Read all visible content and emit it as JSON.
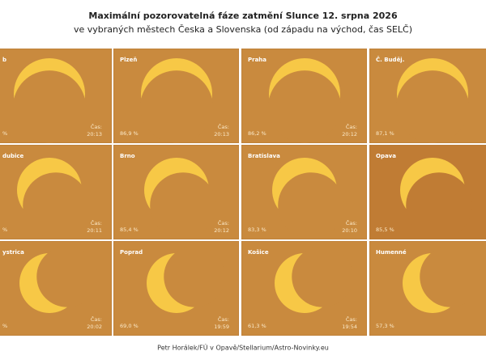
{
  "header": {
    "title": "Maximální pozorovatelná fáze zatmění Slunce 12. srpna 2026",
    "subtitle": "ve vybraných městech Česka a Slovenska (od západu na východ, čas SELČ)"
  },
  "panels": [
    {
      "city": "b",
      "phase": "%",
      "time_label": "Čas:",
      "time": "20:13"
    },
    {
      "city": "Plzeň",
      "phase": "86,9 %",
      "time_label": "Čas:",
      "time": "20:13"
    },
    {
      "city": "Praha",
      "phase": "86,2 %",
      "time_label": "Čas:",
      "time": "20:12"
    },
    {
      "city": "Č. Buděj.",
      "phase": "87,1 %"
    },
    {
      "city": "dubice",
      "phase": "%",
      "time_label": "Čas:",
      "time": "20:11"
    },
    {
      "city": "Brno",
      "phase": "85,4 %",
      "time_label": "Čas:",
      "time": "20:12"
    },
    {
      "city": "Bratislava",
      "phase": "83,3 %",
      "time_label": "Čas:",
      "time": "20:10"
    },
    {
      "city": "Opava",
      "phase": "85,5 %"
    },
    {
      "city": "ystrica",
      "phase": "%",
      "time_label": "Čas:",
      "time": "20:02"
    },
    {
      "city": "Poprad",
      "phase": "69,0 %",
      "time_label": "Čas:",
      "time": "19:59"
    },
    {
      "city": "Košice",
      "phase": "61,3 %",
      "time_label": "Čas:",
      "time": "19:54"
    },
    {
      "city": "Humenné",
      "phase": "57,3 %"
    }
  ],
  "footer": "Petr Horálek/FÚ v Opavě/Stellarium/Astro-Novinky.eu"
}
